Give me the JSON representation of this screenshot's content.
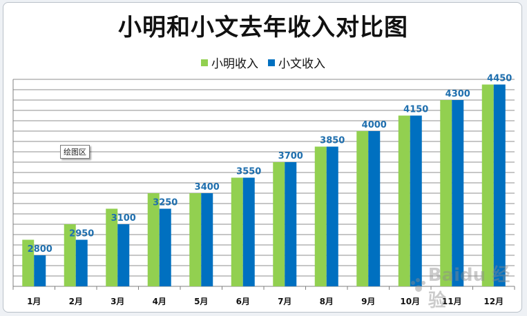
{
  "title": "小明和小文去年收入对比图",
  "tooltip": "绘图区",
  "watermark": "Baidu 经验",
  "colors": {
    "xiaoming": "#92d050",
    "xiaowen": "#0070c0",
    "label": "#1f6fae"
  },
  "chart_data": {
    "type": "bar",
    "title": "小明和小文去年收入对比图",
    "categories": [
      "1月",
      "2月",
      "3月",
      "4月",
      "5月",
      "6月",
      "7月",
      "8月",
      "9月",
      "10月",
      "11月",
      "12月"
    ],
    "series": [
      {
        "name": "小明收入",
        "values": [
          2950,
          3100,
          3250,
          3400,
          3400,
          3550,
          3700,
          3850,
          4000,
          4150,
          4300,
          4450
        ]
      },
      {
        "name": "小文收入",
        "values": [
          2800,
          2950,
          3100,
          3250,
          3400,
          3550,
          3700,
          3850,
          4000,
          4150,
          4300,
          4450
        ]
      }
    ],
    "data_labels_series": "小文收入",
    "ylim": [
      2500,
      4500
    ],
    "y_gridline_step": 100,
    "show_y_tick_labels": false,
    "grid": true,
    "legend": "top-center"
  }
}
